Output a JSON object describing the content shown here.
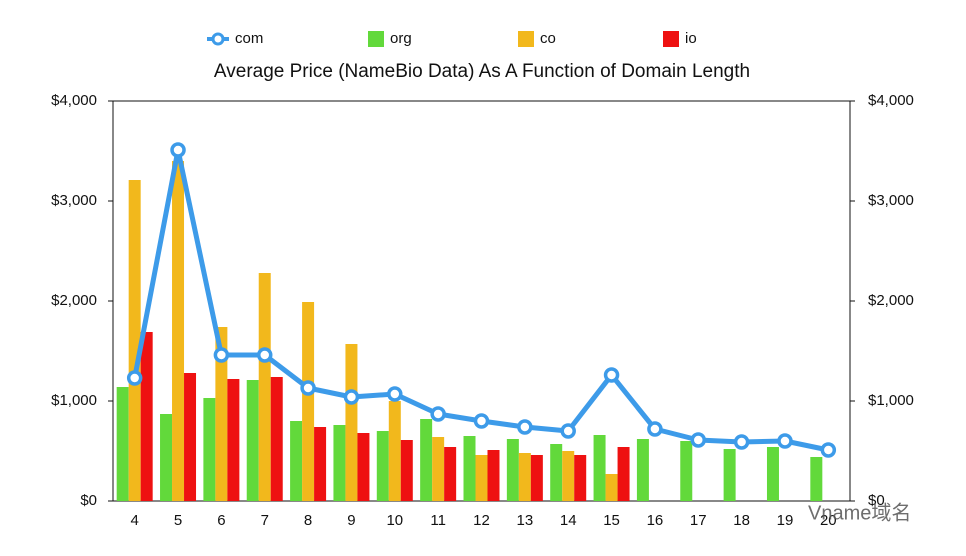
{
  "chart_data": {
    "type": "bar",
    "title": "Average Price (NameBio Data) As A Function of Domain Length",
    "categories": [
      "4",
      "5",
      "6",
      "7",
      "8",
      "9",
      "10",
      "11",
      "12",
      "13",
      "14",
      "15",
      "16",
      "17",
      "18",
      "19",
      "20"
    ],
    "series": [
      {
        "name": "com",
        "type": "line",
        "color": "#3d9be9",
        "values": [
          1230,
          3510,
          1460,
          1460,
          1130,
          1040,
          1070,
          870,
          800,
          740,
          700,
          1260,
          720,
          610,
          590,
          600,
          510
        ]
      },
      {
        "name": "org",
        "color": "#62d93b",
        "values": [
          1140,
          870,
          1030,
          1210,
          800,
          760,
          700,
          820,
          650,
          620,
          570,
          660,
          620,
          600,
          520,
          540,
          440
        ]
      },
      {
        "name": "co",
        "color": "#f2b81c",
        "values": [
          3210,
          3400,
          1740,
          2280,
          1990,
          1570,
          1000,
          640,
          460,
          480,
          500,
          270,
          null,
          null,
          null,
          null,
          null
        ]
      },
      {
        "name": "io",
        "color": "#ee1111",
        "values": [
          1690,
          1280,
          1220,
          1240,
          740,
          680,
          610,
          540,
          510,
          460,
          460,
          540,
          null,
          null,
          null,
          null,
          null
        ]
      }
    ],
    "ylim": [
      0,
      4000
    ],
    "yticks": [
      {
        "value": 0,
        "label": "$0"
      },
      {
        "value": 1000,
        "label": "$1,000"
      },
      {
        "value": 2000,
        "label": "$2,000"
      },
      {
        "value": 3000,
        "label": "$3,000"
      },
      {
        "value": 4000,
        "label": "$4,000"
      }
    ],
    "y2lim": [
      0,
      4000
    ],
    "y2ticks": [
      {
        "value": 0,
        "label": "$0"
      },
      {
        "value": 1000,
        "label": "$1,000"
      },
      {
        "value": 2000,
        "label": "$2,000"
      },
      {
        "value": 3000,
        "label": "$3,000"
      },
      {
        "value": 4000,
        "label": "$4,000"
      }
    ],
    "legend": "top",
    "watermark": "Vname域名"
  }
}
